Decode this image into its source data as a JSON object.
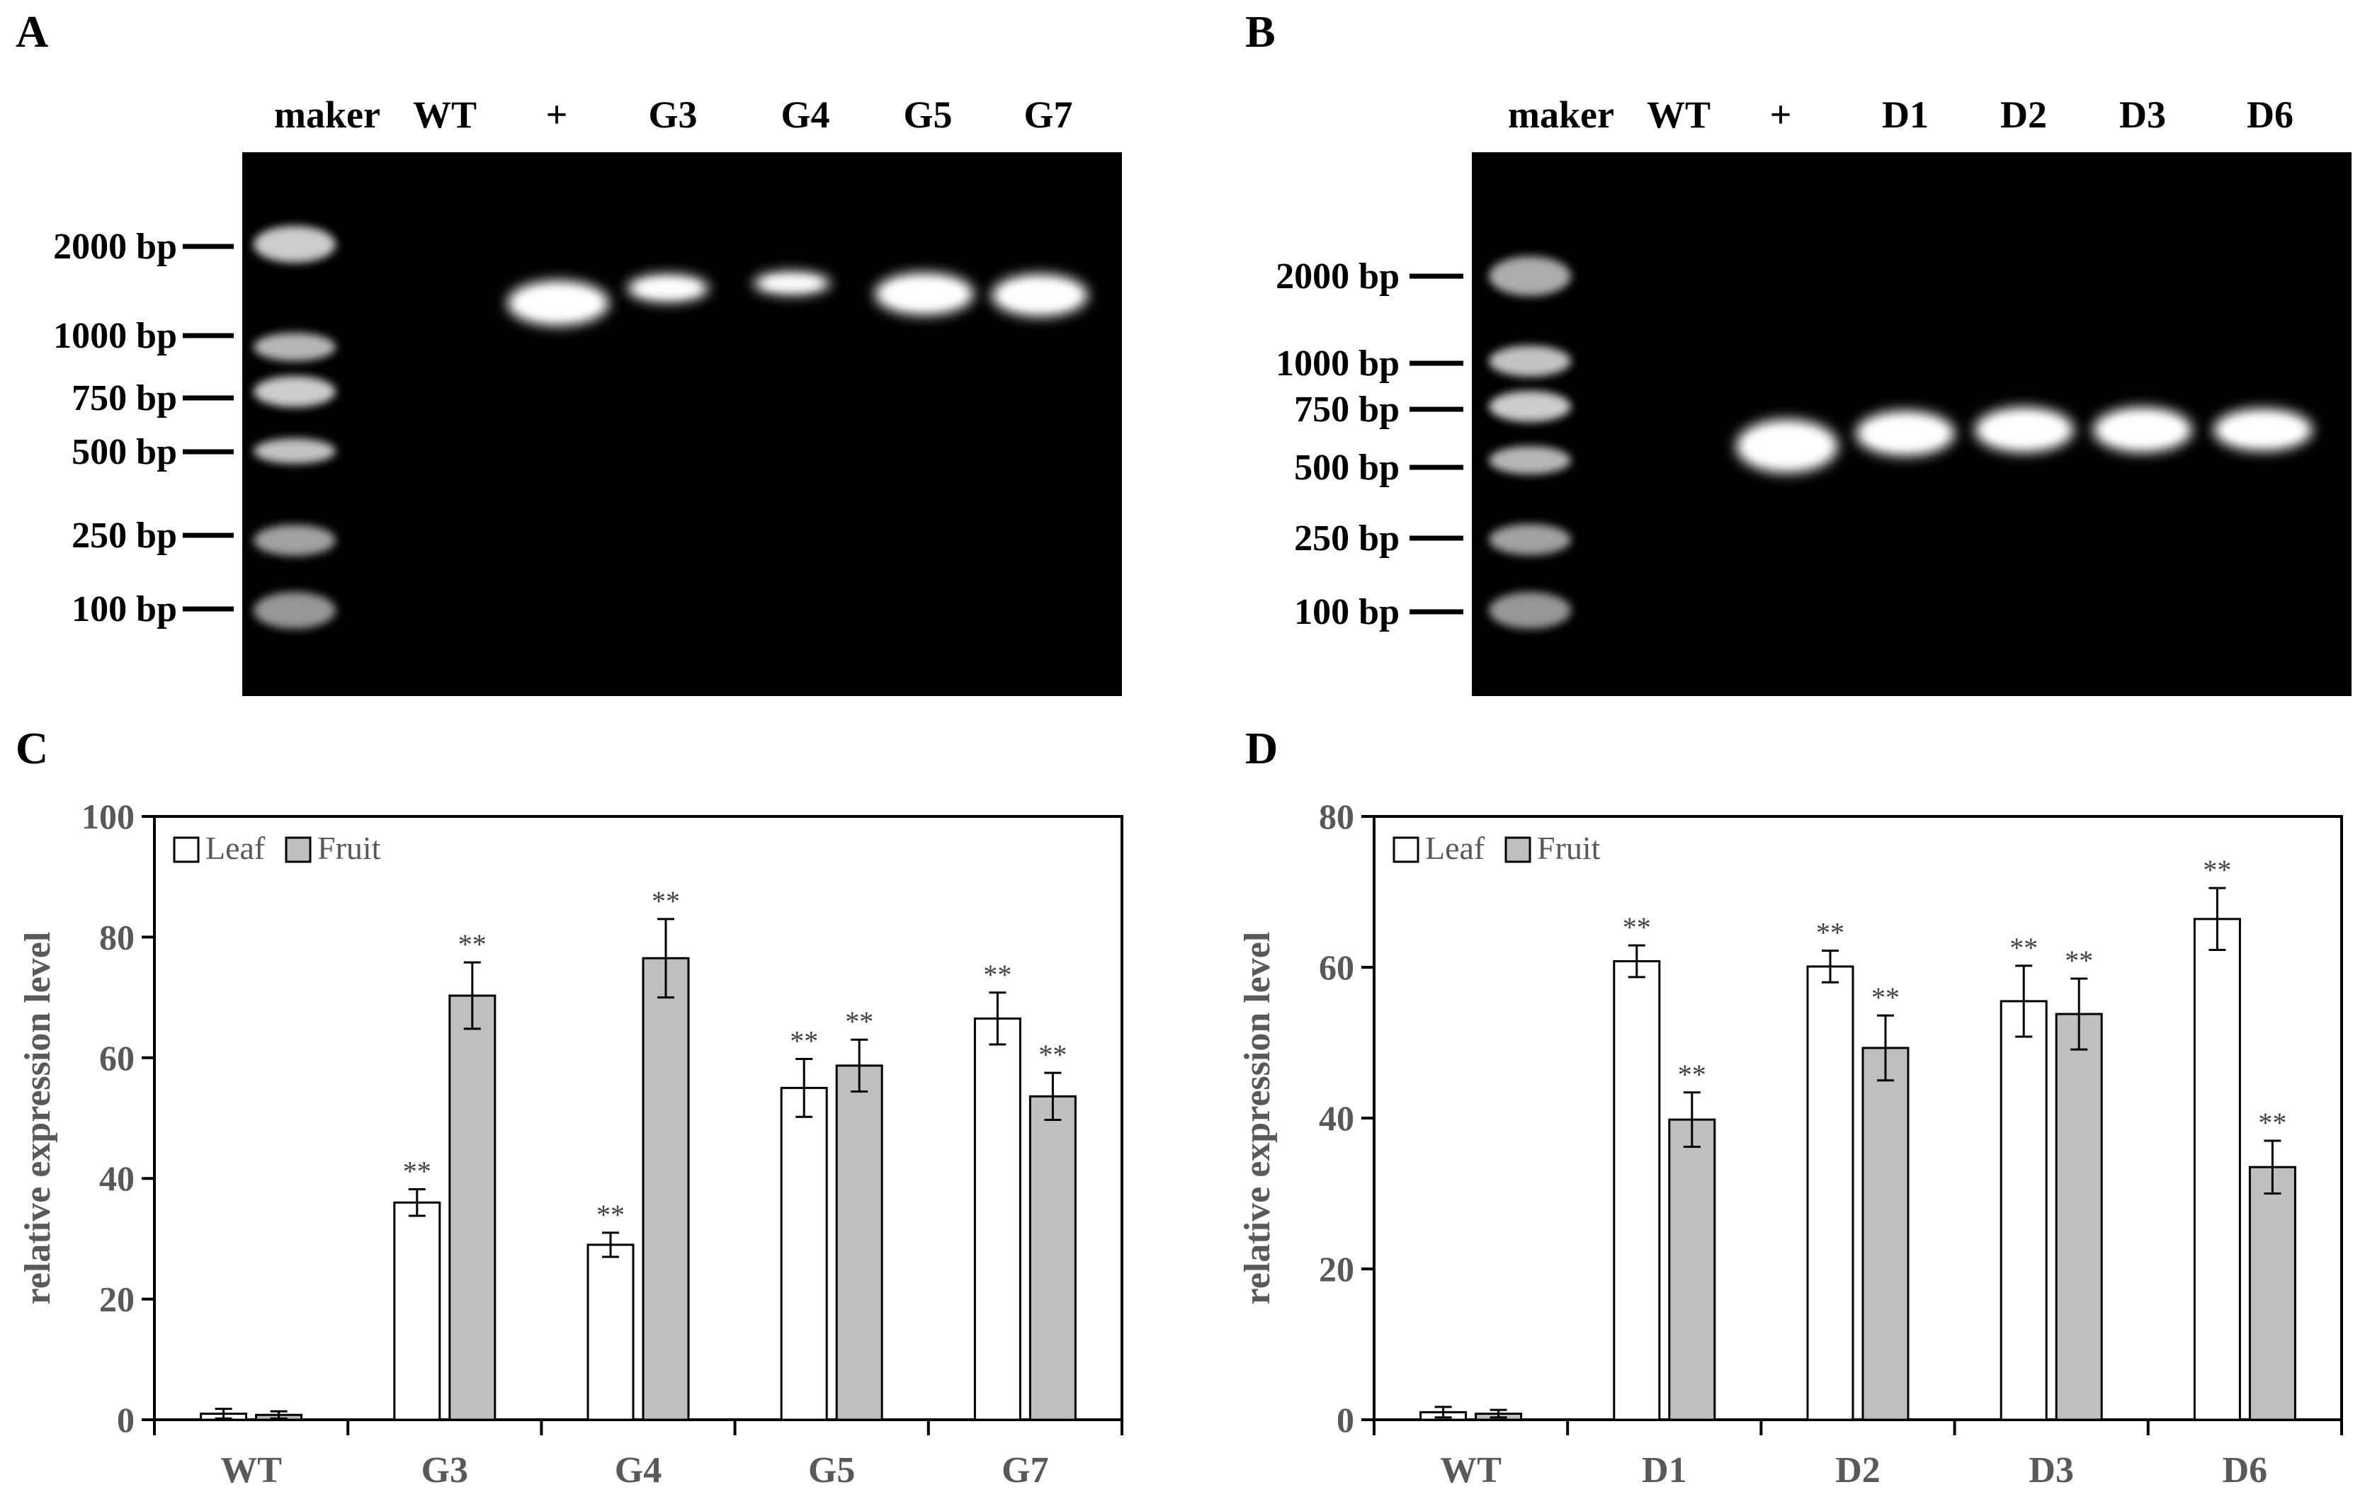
{
  "panels": {
    "A": {
      "letter": "A",
      "lanes": [
        "maker",
        "WT",
        "+",
        "G3",
        "G4",
        "G5",
        "G7"
      ],
      "markers": [
        "2000 bp",
        "1000 bp",
        "750 bp",
        "500 bp",
        "250 bp",
        "100 bp"
      ]
    },
    "B": {
      "letter": "B",
      "lanes": [
        "maker",
        "WT",
        "+",
        "D1",
        "D2",
        "D3",
        "D6"
      ],
      "markers": [
        "2000 bp",
        "1000 bp",
        "750 bp",
        "500 bp",
        "250 bp",
        "100 bp"
      ]
    },
    "C": {
      "letter": "C"
    },
    "D": {
      "letter": "D"
    }
  },
  "chart_data": [
    {
      "panel": "C",
      "type": "bar",
      "ylabel": "relative expression level",
      "xlabel": "",
      "ylim": [
        0,
        100
      ],
      "yticks": [
        0,
        20,
        40,
        60,
        80,
        100
      ],
      "categories": [
        "WT",
        "G3",
        "G4",
        "G5",
        "G7"
      ],
      "legend_position": "top-left",
      "series": [
        {
          "name": "Leaf",
          "color": "#ffffff",
          "values": [
            1.0,
            36.0,
            29.0,
            55.0,
            66.5
          ],
          "errors": [
            0.8,
            2.2,
            2.0,
            4.8,
            4.3
          ],
          "significance": [
            "",
            "**",
            "**",
            "**",
            "**"
          ]
        },
        {
          "name": "Fruit",
          "color": "#bfbfbf",
          "values": [
            0.8,
            70.3,
            76.5,
            58.7,
            53.6
          ],
          "errors": [
            0.6,
            5.5,
            6.5,
            4.3,
            3.9
          ],
          "significance": [
            "",
            "**",
            "**",
            "**",
            "**"
          ]
        }
      ]
    },
    {
      "panel": "D",
      "type": "bar",
      "ylabel": "relative expression level",
      "xlabel": "",
      "ylim": [
        0,
        80
      ],
      "yticks": [
        0,
        20,
        40,
        60,
        80
      ],
      "categories": [
        "WT",
        "D1",
        "D2",
        "D3",
        "D6"
      ],
      "legend_position": "top-left",
      "series": [
        {
          "name": "Leaf",
          "color": "#ffffff",
          "values": [
            1.0,
            60.8,
            60.1,
            55.5,
            66.4
          ],
          "errors": [
            0.7,
            2.1,
            2.1,
            4.7,
            4.1
          ],
          "significance": [
            "",
            "**",
            "**",
            "**",
            "**"
          ]
        },
        {
          "name": "Fruit",
          "color": "#bfbfbf",
          "values": [
            0.8,
            39.8,
            49.3,
            53.8,
            33.5
          ],
          "errors": [
            0.5,
            3.6,
            4.3,
            4.7,
            3.5
          ],
          "significance": [
            "",
            "**",
            "**",
            "**",
            "**"
          ]
        }
      ]
    }
  ]
}
